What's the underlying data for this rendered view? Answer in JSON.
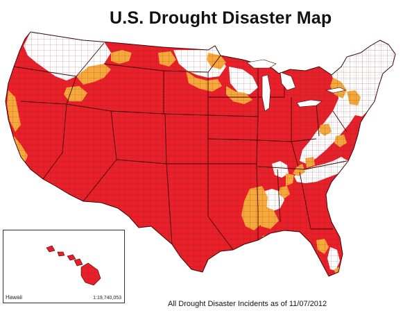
{
  "map": {
    "title": "U.S. Drought Disaster Map",
    "caption": "All Drought Disaster Incidents as of 11/07/2012",
    "colors": {
      "primary_disaster": "#e8202a",
      "contiguous_county": "#f6a93b",
      "no_designation": "#ffffff",
      "county_line": "#7a0f14",
      "state_line": "#3a0508"
    },
    "hawaii_inset": {
      "label": "Hawaii",
      "scale": "1:19,740,053"
    }
  }
}
